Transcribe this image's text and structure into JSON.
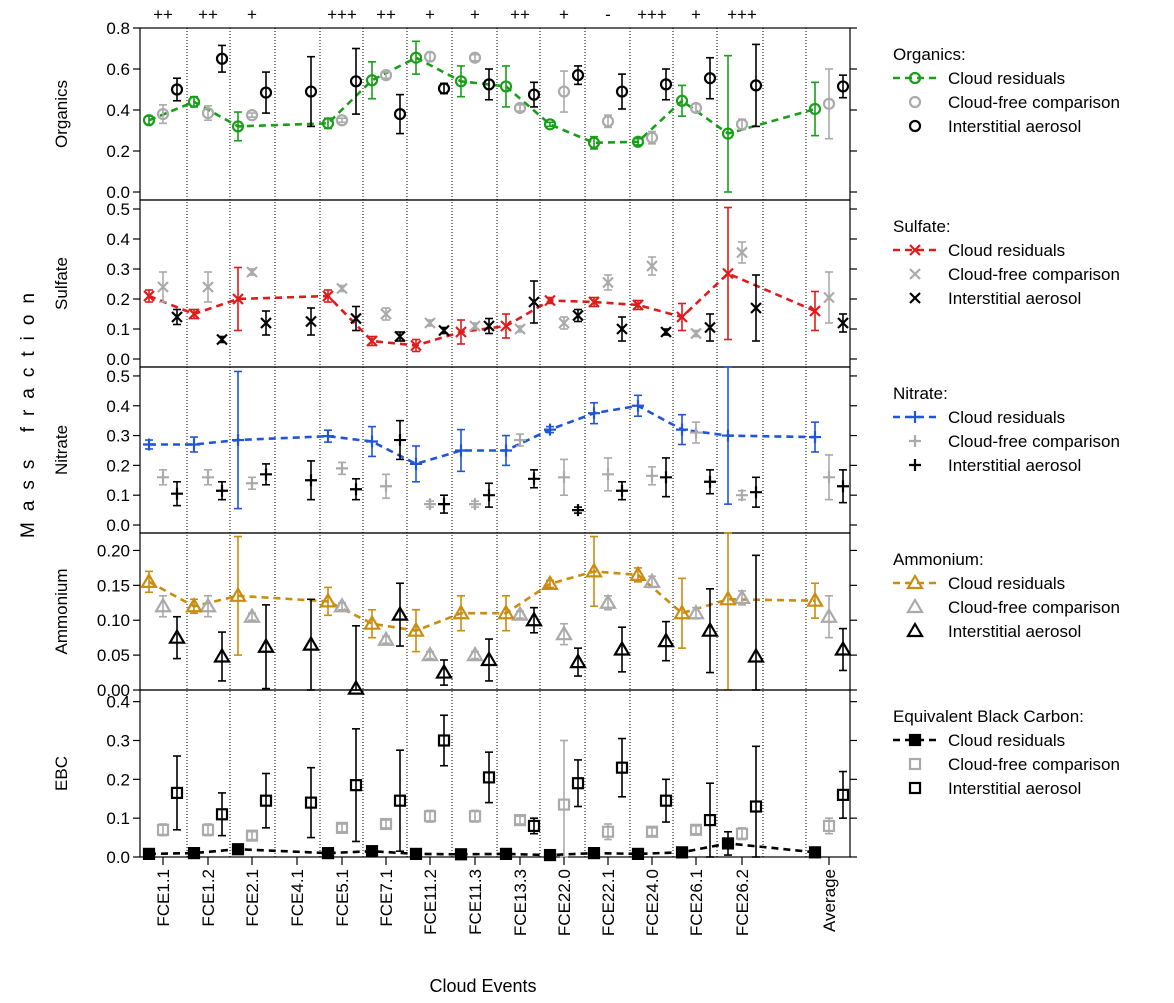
{
  "chart_data": {
    "type": "scatter",
    "ylabel": "Mass fraction",
    "xlabel": "Cloud Events",
    "categories": [
      "FCE1.1",
      "FCE1.2",
      "FCE2.1",
      "FCE4.1",
      "FCE5.1",
      "FCE7.1",
      "FCE11.2",
      "FCE11.3",
      "FCE13.3",
      "FCE22.0",
      "FCE22.1",
      "FCE24.0",
      "FCE26.1",
      "FCE26.2",
      "Average"
    ],
    "significance": [
      "++",
      "++",
      "+",
      "",
      "+++",
      "++",
      "+",
      "+",
      "++",
      "+",
      "-",
      "+++",
      "+",
      "+++",
      ""
    ],
    "series_labels": [
      "Cloud residuals",
      "Cloud-free comparison",
      "Interstitial aerosol"
    ],
    "panels": [
      {
        "id": "organics",
        "ylabel": "Organics",
        "legend_title": "Organics:",
        "ylim": [
          0,
          0.8
        ],
        "ticks": [
          "0.0",
          "0.2",
          "0.4",
          "0.6",
          "0.8"
        ],
        "color": "#1a9e1a",
        "marker": "circle",
        "residuals": [
          [
            0.35,
            0.02
          ],
          [
            0.44,
            0.025
          ],
          [
            0.32,
            0.07
          ],
          null,
          [
            0.335,
            0.025
          ],
          [
            0.545,
            0.09
          ],
          [
            0.655,
            0.08
          ],
          [
            0.54,
            0.075
          ],
          [
            0.515,
            0.1
          ],
          [
            0.33,
            0.01
          ],
          [
            0.24,
            0.03
          ],
          [
            0.245,
            0.015
          ],
          [
            0.445,
            0.075
          ],
          [
            0.285,
            0.38
          ],
          [
            0.405,
            0.13
          ]
        ],
        "cloudfree": [
          [
            0.38,
            0.045
          ],
          [
            0.385,
            0.035
          ],
          [
            0.375,
            0.01
          ],
          null,
          [
            0.35,
            0.01
          ],
          [
            0.57,
            0.015
          ],
          [
            0.66,
            0.02
          ],
          [
            0.655,
            0.015
          ],
          [
            0.41,
            0.015
          ],
          [
            0.49,
            0.1
          ],
          [
            0.345,
            0.03
          ],
          [
            0.265,
            0.03
          ],
          [
            0.41,
            0.02
          ],
          [
            0.33,
            0.025
          ],
          [
            0.43,
            0.17
          ]
        ],
        "interstitial": [
          [
            0.5,
            0.055
          ],
          [
            0.65,
            0.065
          ],
          [
            0.485,
            0.1
          ],
          [
            0.49,
            0.17
          ],
          [
            0.54,
            0.16
          ],
          [
            0.38,
            0.095
          ],
          [
            0.505,
            0.025
          ],
          [
            0.525,
            0.075
          ],
          [
            0.475,
            0.06
          ],
          [
            0.57,
            0.045
          ],
          [
            0.49,
            0.085
          ],
          [
            0.525,
            0.075
          ],
          [
            0.555,
            0.1
          ],
          [
            0.52,
            0.2
          ],
          [
            0.515,
            0.055
          ]
        ]
      },
      {
        "id": "sulfate",
        "ylabel": "Sulfate",
        "legend_title": "Sulfate:",
        "ylim": [
          0,
          0.53
        ],
        "ticks": [
          "0.0",
          "0.1",
          "0.2",
          "0.3",
          "0.4",
          "0.5"
        ],
        "color": "#e01b1b",
        "marker": "x",
        "residuals": [
          [
            0.21,
            0.02
          ],
          [
            0.15,
            0.015
          ],
          [
            0.2,
            0.105
          ],
          null,
          [
            0.21,
            0.02
          ],
          [
            0.06,
            0.015
          ],
          [
            0.045,
            0.02
          ],
          [
            0.09,
            0.04
          ],
          [
            0.11,
            0.04
          ],
          [
            0.195,
            0.01
          ],
          [
            0.19,
            0.015
          ],
          [
            0.18,
            0.015
          ],
          [
            0.14,
            0.045
          ],
          [
            0.285,
            0.22
          ],
          [
            0.16,
            0.065
          ]
        ],
        "cloudfree": [
          [
            0.24,
            0.05
          ],
          [
            0.24,
            0.05
          ],
          [
            0.29,
            0.01
          ],
          null,
          [
            0.235,
            0.01
          ],
          [
            0.15,
            0.02
          ],
          [
            0.12,
            0.01
          ],
          [
            0.11,
            0.01
          ],
          [
            0.1,
            0.01
          ],
          [
            0.12,
            0.02
          ],
          [
            0.255,
            0.025
          ],
          [
            0.31,
            0.03
          ],
          [
            0.085,
            0.01
          ],
          [
            0.355,
            0.035
          ],
          [
            0.205,
            0.085
          ]
        ],
        "interstitial": [
          [
            0.14,
            0.025
          ],
          [
            0.065,
            0.01
          ],
          [
            0.12,
            0.04
          ],
          [
            0.125,
            0.045
          ],
          [
            0.135,
            0.04
          ],
          [
            0.075,
            0.015
          ],
          [
            0.095,
            0.01
          ],
          [
            0.11,
            0.025
          ],
          [
            0.19,
            0.07
          ],
          [
            0.145,
            0.02
          ],
          [
            0.1,
            0.04
          ],
          [
            0.09,
            0.01
          ],
          [
            0.105,
            0.045
          ],
          [
            0.17,
            0.11
          ],
          [
            0.12,
            0.03
          ]
        ]
      },
      {
        "id": "nitrate",
        "ylabel": "Nitrate",
        "legend_title": "Nitrate:",
        "ylim": [
          0,
          0.53
        ],
        "ticks": [
          "0.0",
          "0.1",
          "0.2",
          "0.3",
          "0.4",
          "0.5"
        ],
        "color": "#1f55d6",
        "marker": "plus",
        "residuals": [
          [
            0.27,
            0.015
          ],
          [
            0.27,
            0.025
          ],
          [
            0.285,
            0.23
          ],
          null,
          [
            0.298,
            0.02
          ],
          [
            0.28,
            0.05
          ],
          [
            0.205,
            0.06
          ],
          [
            0.25,
            0.07
          ],
          [
            0.25,
            0.05
          ],
          [
            0.32,
            0.01
          ],
          [
            0.375,
            0.035
          ],
          [
            0.4,
            0.035
          ],
          [
            0.32,
            0.05
          ],
          [
            0.3,
            0.23
          ],
          [
            0.295,
            0.05
          ]
        ],
        "cloudfree": [
          [
            0.16,
            0.025
          ],
          [
            0.16,
            0.025
          ],
          [
            0.14,
            0.02
          ],
          null,
          [
            0.19,
            0.02
          ],
          [
            0.13,
            0.04
          ],
          [
            0.07,
            0.01
          ],
          [
            0.07,
            0.01
          ],
          [
            0.285,
            0.02
          ],
          [
            0.16,
            0.06
          ],
          [
            0.17,
            0.055
          ],
          [
            0.165,
            0.03
          ],
          [
            0.31,
            0.035
          ],
          [
            0.1,
            0.015
          ],
          [
            0.16,
            0.075
          ]
        ],
        "interstitial": [
          [
            0.105,
            0.04
          ],
          [
            0.115,
            0.03
          ],
          [
            0.17,
            0.035
          ],
          [
            0.15,
            0.065
          ],
          [
            0.12,
            0.035
          ],
          [
            0.285,
            0.065
          ],
          [
            0.07,
            0.03
          ],
          [
            0.1,
            0.04
          ],
          [
            0.155,
            0.03
          ],
          [
            0.05,
            0.01
          ],
          [
            0.115,
            0.03
          ],
          [
            0.16,
            0.065
          ],
          [
            0.145,
            0.04
          ],
          [
            0.11,
            0.05
          ],
          [
            0.13,
            0.055
          ]
        ]
      },
      {
        "id": "ammonium",
        "ylabel": "Ammonium",
        "legend_title": "Ammonium:",
        "ylim": [
          0,
          0.225
        ],
        "ticks": [
          "0.00",
          "0.05",
          "0.10",
          "0.15",
          "0.20"
        ],
        "color": "#c98d10",
        "marker": "triangle",
        "residuals": [
          [
            0.155,
            0.015
          ],
          [
            0.12,
            0.01
          ],
          [
            0.135,
            0.085
          ],
          null,
          [
            0.127,
            0.02
          ],
          [
            0.095,
            0.02
          ],
          [
            0.085,
            0.03
          ],
          [
            0.11,
            0.025
          ],
          [
            0.11,
            0.025
          ],
          [
            0.152,
            0.005
          ],
          [
            0.17,
            0.05
          ],
          [
            0.165,
            0.01
          ],
          [
            0.11,
            0.05
          ],
          [
            0.13,
            0.13
          ],
          [
            0.128,
            0.025
          ]
        ],
        "cloudfree": [
          [
            0.12,
            0.015
          ],
          [
            0.12,
            0.015
          ],
          [
            0.105,
            0.005
          ],
          null,
          [
            0.12,
            0.005
          ],
          [
            0.072,
            0.005
          ],
          [
            0.05,
            0.005
          ],
          [
            0.05,
            0.005
          ],
          [
            0.108,
            0.005
          ],
          [
            0.08,
            0.015
          ],
          [
            0.125,
            0.01
          ],
          [
            0.155,
            0.008
          ],
          [
            0.11,
            0.008
          ],
          [
            0.132,
            0.01
          ],
          [
            0.105,
            0.03
          ]
        ],
        "interstitial": [
          [
            0.075,
            0.03
          ],
          [
            0.048,
            0.035
          ],
          [
            0.062,
            0.06
          ],
          [
            0.065,
            0.065
          ],
          [
            0.002,
            0.09
          ],
          [
            0.108,
            0.045
          ],
          [
            0.025,
            0.018
          ],
          [
            0.043,
            0.03
          ],
          [
            0.1,
            0.018
          ],
          [
            0.04,
            0.02
          ],
          [
            0.058,
            0.032
          ],
          [
            0.07,
            0.028
          ],
          [
            0.085,
            0.06
          ],
          [
            0.048,
            0.145
          ],
          [
            0.058,
            0.03
          ]
        ]
      },
      {
        "id": "ebc",
        "ylabel": "EBC",
        "legend_title": "Equivalent Black Carbon:",
        "ylim": [
          0,
          0.43
        ],
        "ticks": [
          "0.0",
          "0.1",
          "0.2",
          "0.3",
          "0.4"
        ],
        "color": "#000000",
        "marker": "square",
        "residuals": [
          [
            0.008,
            0.002
          ],
          [
            0.01,
            0.003
          ],
          [
            0.02,
            0.012
          ],
          null,
          [
            0.01,
            0.002
          ],
          [
            0.015,
            0.005
          ],
          [
            0.008,
            0.002
          ],
          [
            0.007,
            0.002
          ],
          [
            0.008,
            0.002
          ],
          [
            0.005,
            0.002
          ],
          [
            0.01,
            0.002
          ],
          [
            0.008,
            0.002
          ],
          [
            0.012,
            0.008
          ],
          [
            0.035,
            0.03
          ],
          [
            0.012,
            0.005
          ]
        ],
        "cloudfree": [
          [
            0.07,
            0.015
          ],
          [
            0.07,
            0.015
          ],
          [
            0.055,
            0.01
          ],
          null,
          [
            0.075,
            0.01
          ],
          [
            0.085,
            0.01
          ],
          [
            0.105,
            0.015
          ],
          [
            0.105,
            0.015
          ],
          [
            0.095,
            0.01
          ],
          [
            0.135,
            0.165
          ],
          [
            0.065,
            0.02
          ],
          [
            0.065,
            0.01
          ],
          [
            0.07,
            0.01
          ],
          [
            0.06,
            0.015
          ],
          [
            0.08,
            0.02
          ]
        ],
        "interstitial": [
          [
            0.165,
            0.095
          ],
          [
            0.11,
            0.055
          ],
          [
            0.145,
            0.07
          ],
          [
            0.14,
            0.09
          ],
          [
            0.185,
            0.145
          ],
          [
            0.145,
            0.13
          ],
          [
            0.3,
            0.065
          ],
          [
            0.205,
            0.065
          ],
          [
            0.08,
            0.02
          ],
          [
            0.19,
            0.06
          ],
          [
            0.23,
            0.075
          ],
          [
            0.145,
            0.055
          ],
          [
            0.095,
            0.095
          ],
          [
            0.13,
            0.155
          ],
          [
            0.16,
            0.06
          ]
        ]
      }
    ],
    "colors": {
      "cloudfree": "#aaaaaa",
      "interstitial": "#000000"
    }
  }
}
